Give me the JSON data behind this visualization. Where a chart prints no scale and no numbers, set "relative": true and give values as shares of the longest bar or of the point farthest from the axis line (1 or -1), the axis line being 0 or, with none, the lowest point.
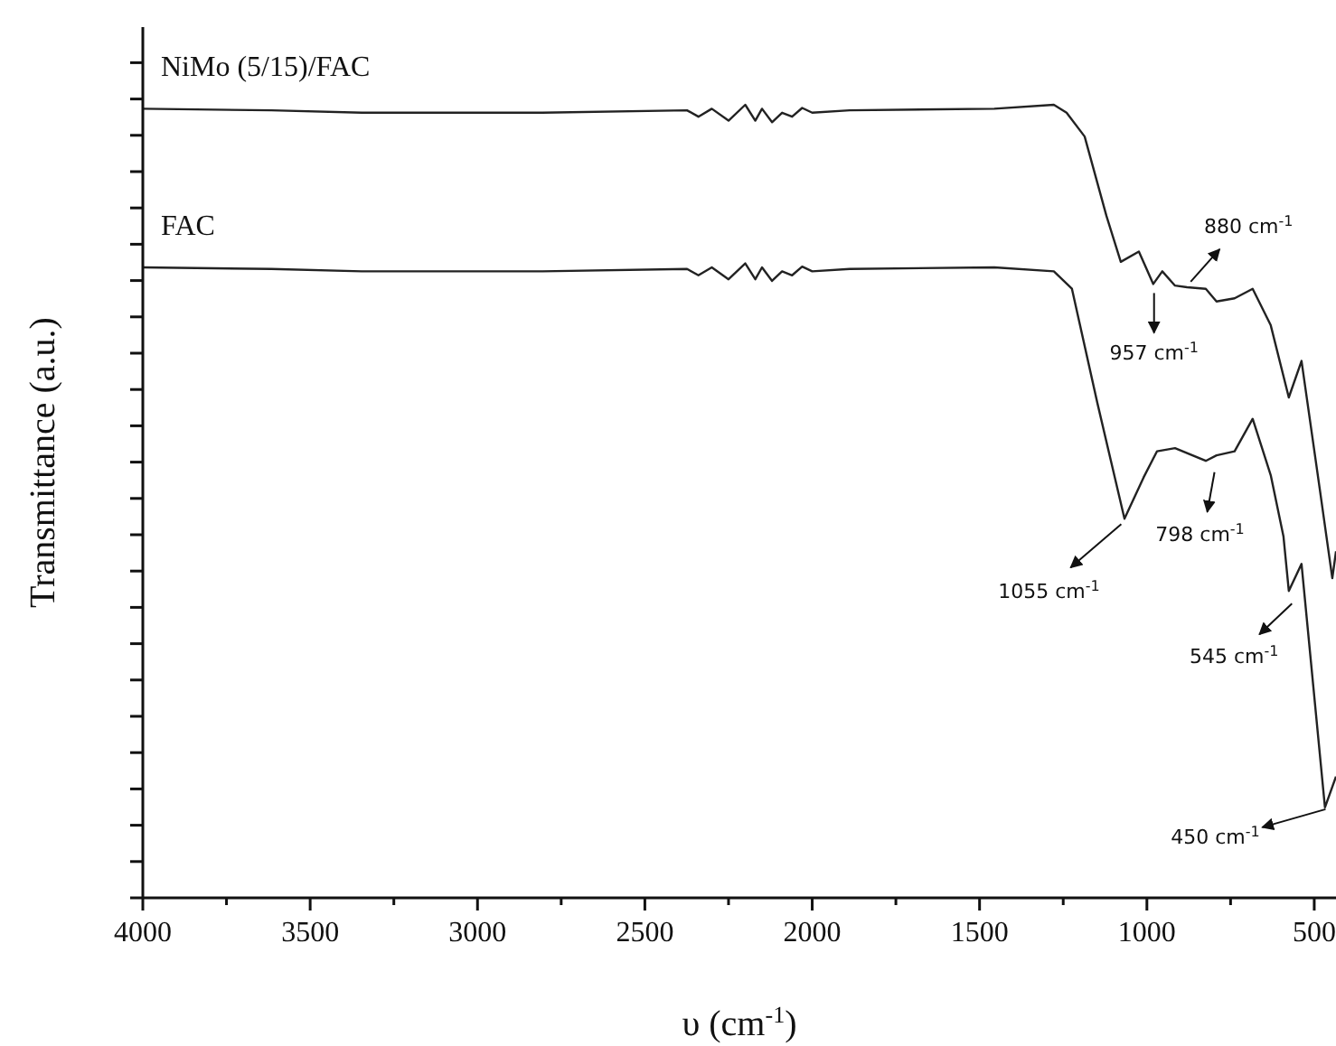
{
  "chart_data": {
    "type": "line",
    "relative": true,
    "xlabel": "υ (cm$^{-1}$)",
    "ylabel": "Transmittance (a.u.)",
    "xlim": [
      4000,
      435
    ],
    "xticks": [
      4000,
      {
        "value": 3750,
        "label": null
      },
      3500,
      {
        "value": 3250,
        "label": null
      },
      3000,
      {
        "value": 2750,
        "label": null
      },
      2500,
      {
        "value": 2250,
        "label": null
      },
      2000,
      {
        "value": 1750,
        "label": null
      },
      1500,
      {
        "value": 1250,
        "label": null
      },
      1000,
      {
        "value": 750,
        "label": null
      },
      500
    ],
    "grid": false,
    "legend": false,
    "marker": "none",
    "line_style": "solid",
    "series": [
      {
        "name": "NiMo (5/15)/FAC",
        "color": "#222222",
        "x": [
          4000,
          3616,
          3346,
          2806,
          2374,
          2340,
          2300,
          2250,
          2200,
          2170,
          2150,
          2120,
          2090,
          2060,
          2030,
          2000,
          1888,
          1456,
          1278,
          1240,
          1186,
          1121,
          1078,
          1024,
          981,
          954,
          916,
          880,
          824,
          792,
          738,
          684,
          630,
          576,
          538,
          484,
          446,
          435
        ],
        "values": [
          0.995,
          0.993,
          0.99,
          0.99,
          0.993,
          0.985,
          0.995,
          0.98,
          1.0,
          0.98,
          0.995,
          0.978,
          0.99,
          0.985,
          0.996,
          0.99,
          0.993,
          0.995,
          1.0,
          0.99,
          0.96,
          0.86,
          0.802,
          0.815,
          0.774,
          0.79,
          0.772,
          0.77,
          0.768,
          0.752,
          0.756,
          0.768,
          0.722,
          0.631,
          0.677,
          0.517,
          0.403,
          0.437
        ]
      },
      {
        "name": "FAC",
        "color": "#222222",
        "x": [
          4000,
          3616,
          3346,
          2806,
          2374,
          2340,
          2300,
          2250,
          2200,
          2170,
          2150,
          2120,
          2090,
          2060,
          2030,
          2000,
          1888,
          1456,
          1278,
          1224,
          1148,
          1067,
          1010,
          970,
          916,
          824,
          792,
          738,
          684,
          630,
          592,
          576,
          538,
          468,
          435
        ],
        "values": [
          0.795,
          0.793,
          0.79,
          0.79,
          0.793,
          0.785,
          0.795,
          0.78,
          0.8,
          0.78,
          0.795,
          0.778,
          0.79,
          0.785,
          0.796,
          0.79,
          0.793,
          0.795,
          0.79,
          0.768,
          0.624,
          0.478,
          0.53,
          0.563,
          0.567,
          0.551,
          0.558,
          0.563,
          0.604,
          0.533,
          0.456,
          0.387,
          0.421,
          0.114,
          0.153
        ]
      }
    ],
    "annotations": [
      {
        "text": "880 cm$^{-1}$",
        "x": 880,
        "y": 0.77
      },
      {
        "text": "957 cm$^{-1}$",
        "x": 957,
        "y": 0.774
      },
      {
        "text": "798 cm$^{-1}$",
        "x": 798,
        "y": 0.555
      },
      {
        "text": "1055 cm$^{-1}$",
        "x": 1055,
        "y": 0.478
      },
      {
        "text": "545 cm$^{-1}$",
        "x": 545,
        "y": 0.387
      },
      {
        "text": "450 cm$^{-1}$",
        "x": 450,
        "y": 0.114
      }
    ]
  }
}
